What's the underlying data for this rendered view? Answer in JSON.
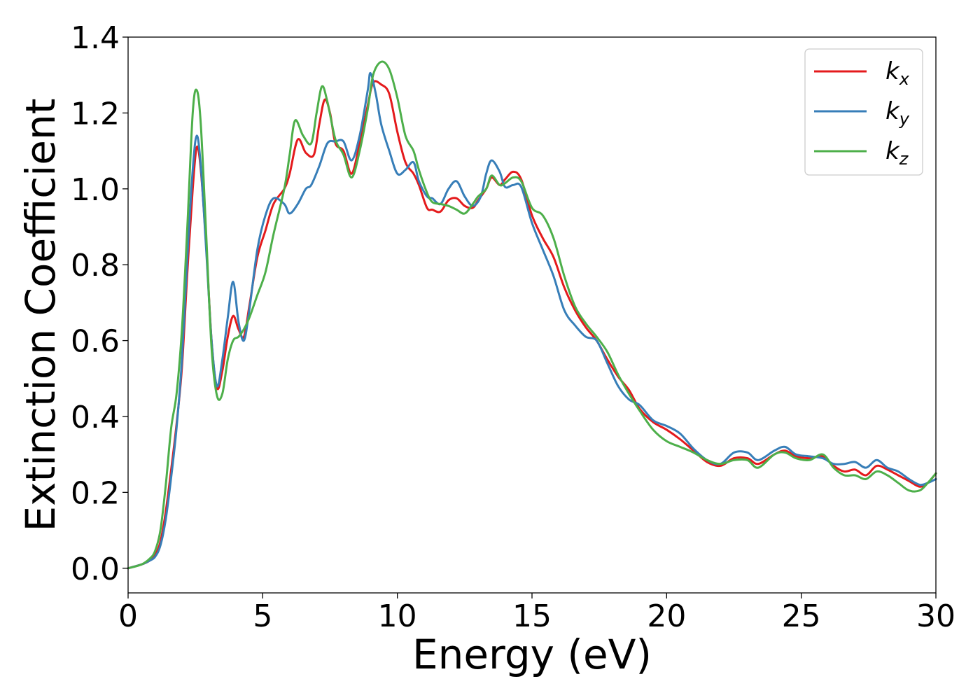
{
  "chart_data": {
    "type": "line",
    "title": "",
    "xlabel": "Energy (eV)",
    "ylabel": "Extinction Coefficient",
    "xlim": [
      0,
      30
    ],
    "ylim": [
      -0.065,
      1.4
    ],
    "xticks": [
      0,
      5,
      10,
      15,
      20,
      25,
      30
    ],
    "yticks": [
      0.0,
      0.2,
      0.4,
      0.6,
      0.8,
      1.0,
      1.2,
      1.4
    ],
    "xtick_labels": [
      "0",
      "5",
      "10",
      "15",
      "20",
      "25",
      "30"
    ],
    "ytick_labels": [
      "0.0",
      "0.2",
      "0.4",
      "0.6",
      "0.8",
      "1.0",
      "1.2",
      "1.4"
    ],
    "grid": false,
    "legend_position": "top-right",
    "series": [
      {
        "name": "k",
        "subscript": "x",
        "color": "#e41a1c",
        "points": [
          [
            0,
            0
          ],
          [
            0.5,
            0.01
          ],
          [
            0.8,
            0.02
          ],
          [
            1.0,
            0.035
          ],
          [
            1.2,
            0.07
          ],
          [
            1.4,
            0.15
          ],
          [
            1.6,
            0.26
          ],
          [
            1.8,
            0.38
          ],
          [
            2.0,
            0.53
          ],
          [
            2.2,
            0.78
          ],
          [
            2.4,
            1.0
          ],
          [
            2.55,
            1.11
          ],
          [
            2.7,
            1.05
          ],
          [
            2.9,
            0.85
          ],
          [
            3.1,
            0.6
          ],
          [
            3.3,
            0.475
          ],
          [
            3.5,
            0.52
          ],
          [
            3.7,
            0.61
          ],
          [
            3.9,
            0.665
          ],
          [
            4.1,
            0.63
          ],
          [
            4.3,
            0.61
          ],
          [
            4.5,
            0.69
          ],
          [
            4.8,
            0.82
          ],
          [
            5.1,
            0.89
          ],
          [
            5.4,
            0.96
          ],
          [
            5.8,
            1.0
          ],
          [
            6.0,
            1.04
          ],
          [
            6.3,
            1.13
          ],
          [
            6.6,
            1.095
          ],
          [
            6.9,
            1.09
          ],
          [
            7.1,
            1.17
          ],
          [
            7.3,
            1.235
          ],
          [
            7.5,
            1.2
          ],
          [
            7.7,
            1.12
          ],
          [
            8.0,
            1.1
          ],
          [
            8.3,
            1.04
          ],
          [
            8.6,
            1.12
          ],
          [
            8.9,
            1.22
          ],
          [
            9.1,
            1.28
          ],
          [
            9.4,
            1.275
          ],
          [
            9.7,
            1.25
          ],
          [
            10.0,
            1.15
          ],
          [
            10.3,
            1.07
          ],
          [
            10.6,
            1.04
          ],
          [
            10.8,
            1.01
          ],
          [
            11.1,
            0.95
          ],
          [
            11.3,
            0.945
          ],
          [
            11.6,
            0.94
          ],
          [
            11.9,
            0.97
          ],
          [
            12.2,
            0.975
          ],
          [
            12.5,
            0.955
          ],
          [
            12.8,
            0.95
          ],
          [
            13.0,
            0.97
          ],
          [
            13.3,
            1.0
          ],
          [
            13.5,
            1.03
          ],
          [
            13.8,
            1.01
          ],
          [
            14.0,
            1.025
          ],
          [
            14.3,
            1.045
          ],
          [
            14.6,
            1.025
          ],
          [
            15.0,
            0.93
          ],
          [
            15.4,
            0.87
          ],
          [
            15.8,
            0.82
          ],
          [
            16.2,
            0.74
          ],
          [
            16.6,
            0.68
          ],
          [
            17.0,
            0.635
          ],
          [
            17.4,
            0.6
          ],
          [
            17.8,
            0.55
          ],
          [
            18.2,
            0.505
          ],
          [
            18.6,
            0.47
          ],
          [
            19.0,
            0.42
          ],
          [
            19.5,
            0.385
          ],
          [
            20.0,
            0.365
          ],
          [
            20.5,
            0.34
          ],
          [
            21.0,
            0.31
          ],
          [
            21.5,
            0.28
          ],
          [
            22.0,
            0.27
          ],
          [
            22.5,
            0.29
          ],
          [
            23.0,
            0.29
          ],
          [
            23.4,
            0.275
          ],
          [
            24.0,
            0.3
          ],
          [
            24.4,
            0.31
          ],
          [
            24.8,
            0.295
          ],
          [
            25.3,
            0.29
          ],
          [
            25.8,
            0.295
          ],
          [
            26.2,
            0.27
          ],
          [
            26.6,
            0.255
          ],
          [
            27.0,
            0.26
          ],
          [
            27.4,
            0.245
          ],
          [
            27.8,
            0.27
          ],
          [
            28.2,
            0.26
          ],
          [
            28.6,
            0.245
          ],
          [
            29.0,
            0.23
          ],
          [
            29.4,
            0.215
          ],
          [
            29.7,
            0.225
          ],
          [
            30.0,
            0.25
          ]
        ]
      },
      {
        "name": "k",
        "subscript": "y",
        "color": "#377eb8",
        "points": [
          [
            0,
            0
          ],
          [
            0.5,
            0.01
          ],
          [
            0.8,
            0.02
          ],
          [
            1.0,
            0.03
          ],
          [
            1.2,
            0.06
          ],
          [
            1.4,
            0.13
          ],
          [
            1.6,
            0.24
          ],
          [
            1.8,
            0.37
          ],
          [
            2.0,
            0.55
          ],
          [
            2.2,
            0.82
          ],
          [
            2.4,
            1.05
          ],
          [
            2.55,
            1.14
          ],
          [
            2.7,
            1.06
          ],
          [
            2.9,
            0.84
          ],
          [
            3.1,
            0.6
          ],
          [
            3.3,
            0.48
          ],
          [
            3.5,
            0.55
          ],
          [
            3.7,
            0.66
          ],
          [
            3.9,
            0.755
          ],
          [
            4.1,
            0.65
          ],
          [
            4.3,
            0.6
          ],
          [
            4.5,
            0.68
          ],
          [
            4.8,
            0.84
          ],
          [
            5.1,
            0.93
          ],
          [
            5.4,
            0.975
          ],
          [
            5.8,
            0.96
          ],
          [
            6.0,
            0.935
          ],
          [
            6.3,
            0.96
          ],
          [
            6.6,
            1.0
          ],
          [
            6.8,
            1.01
          ],
          [
            7.1,
            1.06
          ],
          [
            7.4,
            1.12
          ],
          [
            7.7,
            1.125
          ],
          [
            8.0,
            1.125
          ],
          [
            8.3,
            1.075
          ],
          [
            8.6,
            1.14
          ],
          [
            8.9,
            1.26
          ],
          [
            9.0,
            1.305
          ],
          [
            9.2,
            1.25
          ],
          [
            9.4,
            1.17
          ],
          [
            9.7,
            1.1
          ],
          [
            10.0,
            1.04
          ],
          [
            10.3,
            1.05
          ],
          [
            10.6,
            1.07
          ],
          [
            10.8,
            1.02
          ],
          [
            11.1,
            0.98
          ],
          [
            11.3,
            0.975
          ],
          [
            11.6,
            0.96
          ],
          [
            11.9,
            1.0
          ],
          [
            12.2,
            1.02
          ],
          [
            12.5,
            0.98
          ],
          [
            12.8,
            0.955
          ],
          [
            13.1,
            0.98
          ],
          [
            13.3,
            1.04
          ],
          [
            13.5,
            1.075
          ],
          [
            13.8,
            1.045
          ],
          [
            14.0,
            1.005
          ],
          [
            14.3,
            1.01
          ],
          [
            14.6,
            1.005
          ],
          [
            15.0,
            0.91
          ],
          [
            15.4,
            0.84
          ],
          [
            15.8,
            0.77
          ],
          [
            16.2,
            0.68
          ],
          [
            16.6,
            0.64
          ],
          [
            17.0,
            0.61
          ],
          [
            17.4,
            0.6
          ],
          [
            17.8,
            0.54
          ],
          [
            18.2,
            0.48
          ],
          [
            18.6,
            0.445
          ],
          [
            19.0,
            0.43
          ],
          [
            19.5,
            0.39
          ],
          [
            20.0,
            0.375
          ],
          [
            20.5,
            0.355
          ],
          [
            21.0,
            0.315
          ],
          [
            21.5,
            0.285
          ],
          [
            22.0,
            0.275
          ],
          [
            22.5,
            0.305
          ],
          [
            23.0,
            0.305
          ],
          [
            23.4,
            0.285
          ],
          [
            24.0,
            0.31
          ],
          [
            24.4,
            0.32
          ],
          [
            24.8,
            0.3
          ],
          [
            25.3,
            0.295
          ],
          [
            25.8,
            0.29
          ],
          [
            26.2,
            0.275
          ],
          [
            26.6,
            0.275
          ],
          [
            27.0,
            0.28
          ],
          [
            27.4,
            0.265
          ],
          [
            27.8,
            0.285
          ],
          [
            28.2,
            0.265
          ],
          [
            28.6,
            0.255
          ],
          [
            29.0,
            0.235
          ],
          [
            29.4,
            0.22
          ],
          [
            29.7,
            0.225
          ],
          [
            30.0,
            0.235
          ]
        ]
      },
      {
        "name": "k",
        "subscript": "z",
        "color": "#4daf4a",
        "points": [
          [
            0,
            0
          ],
          [
            0.5,
            0.01
          ],
          [
            0.8,
            0.025
          ],
          [
            1.0,
            0.045
          ],
          [
            1.2,
            0.1
          ],
          [
            1.4,
            0.22
          ],
          [
            1.6,
            0.37
          ],
          [
            1.8,
            0.46
          ],
          [
            2.0,
            0.63
          ],
          [
            2.2,
            0.9
          ],
          [
            2.4,
            1.2
          ],
          [
            2.55,
            1.26
          ],
          [
            2.7,
            1.17
          ],
          [
            2.9,
            0.88
          ],
          [
            3.1,
            0.58
          ],
          [
            3.3,
            0.455
          ],
          [
            3.5,
            0.46
          ],
          [
            3.7,
            0.55
          ],
          [
            3.9,
            0.6
          ],
          [
            4.1,
            0.61
          ],
          [
            4.3,
            0.63
          ],
          [
            4.5,
            0.66
          ],
          [
            4.8,
            0.72
          ],
          [
            5.1,
            0.78
          ],
          [
            5.4,
            0.88
          ],
          [
            5.8,
            1.0
          ],
          [
            6.0,
            1.09
          ],
          [
            6.2,
            1.18
          ],
          [
            6.5,
            1.14
          ],
          [
            6.8,
            1.12
          ],
          [
            7.0,
            1.2
          ],
          [
            7.2,
            1.27
          ],
          [
            7.4,
            1.23
          ],
          [
            7.7,
            1.13
          ],
          [
            8.0,
            1.09
          ],
          [
            8.3,
            1.03
          ],
          [
            8.6,
            1.1
          ],
          [
            8.9,
            1.21
          ],
          [
            9.1,
            1.3
          ],
          [
            9.4,
            1.335
          ],
          [
            9.7,
            1.315
          ],
          [
            10.0,
            1.24
          ],
          [
            10.3,
            1.14
          ],
          [
            10.6,
            1.1
          ],
          [
            10.8,
            1.05
          ],
          [
            11.1,
            0.99
          ],
          [
            11.3,
            0.965
          ],
          [
            11.6,
            0.96
          ],
          [
            11.9,
            0.955
          ],
          [
            12.2,
            0.945
          ],
          [
            12.5,
            0.935
          ],
          [
            12.8,
            0.96
          ],
          [
            13.0,
            0.98
          ],
          [
            13.3,
            1.0
          ],
          [
            13.5,
            1.035
          ],
          [
            13.8,
            1.01
          ],
          [
            14.0,
            1.015
          ],
          [
            14.3,
            1.03
          ],
          [
            14.6,
            1.02
          ],
          [
            15.0,
            0.95
          ],
          [
            15.4,
            0.93
          ],
          [
            15.8,
            0.87
          ],
          [
            16.2,
            0.77
          ],
          [
            16.6,
            0.69
          ],
          [
            17.0,
            0.645
          ],
          [
            17.4,
            0.61
          ],
          [
            17.8,
            0.57
          ],
          [
            18.2,
            0.51
          ],
          [
            18.6,
            0.46
          ],
          [
            19.0,
            0.415
          ],
          [
            19.5,
            0.365
          ],
          [
            20.0,
            0.335
          ],
          [
            20.5,
            0.32
          ],
          [
            21.0,
            0.305
          ],
          [
            21.5,
            0.285
          ],
          [
            22.0,
            0.275
          ],
          [
            22.5,
            0.285
          ],
          [
            23.0,
            0.285
          ],
          [
            23.4,
            0.265
          ],
          [
            24.0,
            0.3
          ],
          [
            24.4,
            0.305
          ],
          [
            24.8,
            0.29
          ],
          [
            25.3,
            0.285
          ],
          [
            25.8,
            0.3
          ],
          [
            26.2,
            0.265
          ],
          [
            26.6,
            0.245
          ],
          [
            27.0,
            0.245
          ],
          [
            27.4,
            0.235
          ],
          [
            27.8,
            0.255
          ],
          [
            28.2,
            0.245
          ],
          [
            28.6,
            0.225
          ],
          [
            29.0,
            0.205
          ],
          [
            29.4,
            0.205
          ],
          [
            29.7,
            0.225
          ],
          [
            30.0,
            0.25
          ]
        ]
      }
    ]
  }
}
